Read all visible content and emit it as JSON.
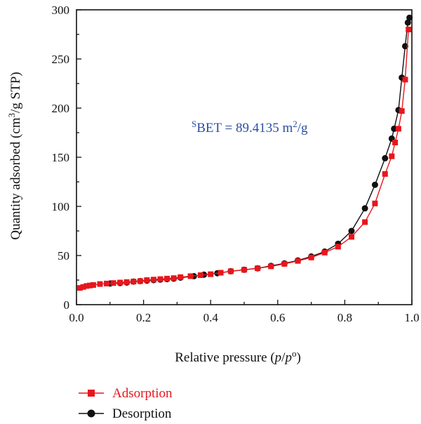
{
  "chart_data": {
    "type": "line",
    "xlabel": {
      "prefix": "Relative pressure (",
      "var1": "p",
      "slash": "/",
      "var2": "p",
      "sup": "o",
      "suffix": ")"
    },
    "ylabel": {
      "prefix": "Quantity adsorbed (cm",
      "sup": "3",
      "suffix": "/g STP)"
    },
    "xlim": [
      0.0,
      1.0
    ],
    "ylim": [
      0,
      300
    ],
    "x_ticks": [
      "0.0",
      "0.2",
      "0.4",
      "0.6",
      "0.8",
      "1.0"
    ],
    "y_ticks": [
      "0",
      "50",
      "100",
      "150",
      "200",
      "250",
      "300"
    ],
    "annotation": {
      "sup_prefix": "S",
      "main": "BET = 89.4135 m",
      "sup": "2",
      "suffix": "/g"
    },
    "legend_position": "bottom-left",
    "grid": false,
    "series": [
      {
        "name": "Adsorption",
        "color": "#e8161c",
        "marker": "square",
        "x": [
          0.01,
          0.02,
          0.03,
          0.04,
          0.05,
          0.07,
          0.09,
          0.11,
          0.13,
          0.15,
          0.17,
          0.19,
          0.21,
          0.23,
          0.25,
          0.27,
          0.29,
          0.31,
          0.34,
          0.37,
          0.4,
          0.43,
          0.46,
          0.5,
          0.54,
          0.58,
          0.62,
          0.66,
          0.7,
          0.74,
          0.78,
          0.82,
          0.86,
          0.89,
          0.92,
          0.94,
          0.95,
          0.96,
          0.97,
          0.98,
          0.99
        ],
        "y": [
          17,
          18,
          19,
          19.5,
          20,
          21,
          21.5,
          22,
          22.5,
          23,
          23.5,
          24,
          25,
          25.5,
          26,
          26.5,
          27,
          28,
          29,
          30,
          31,
          32.5,
          34,
          35.5,
          37,
          39,
          41.5,
          44.5,
          48,
          53,
          59,
          69,
          84,
          103,
          133,
          151,
          165,
          179,
          197,
          229,
          280
        ]
      },
      {
        "name": "Desorption",
        "color": "#111111",
        "marker": "circle",
        "x": [
          0.1,
          0.13,
          0.15,
          0.17,
          0.19,
          0.21,
          0.23,
          0.25,
          0.27,
          0.29,
          0.31,
          0.35,
          0.38,
          0.42,
          0.46,
          0.5,
          0.54,
          0.58,
          0.62,
          0.66,
          0.7,
          0.74,
          0.78,
          0.82,
          0.86,
          0.89,
          0.92,
          0.94,
          0.947,
          0.96,
          0.97,
          0.98,
          0.988,
          0.993
        ],
        "y": [
          21.5,
          22,
          22.5,
          23.5,
          24,
          24.5,
          25,
          25.5,
          26,
          26.5,
          27.5,
          29,
          30.5,
          32,
          34,
          35.5,
          37,
          39.5,
          42,
          45,
          49,
          54,
          62,
          75,
          98,
          122,
          149,
          169,
          179,
          198,
          231,
          263,
          287,
          292
        ]
      }
    ]
  }
}
